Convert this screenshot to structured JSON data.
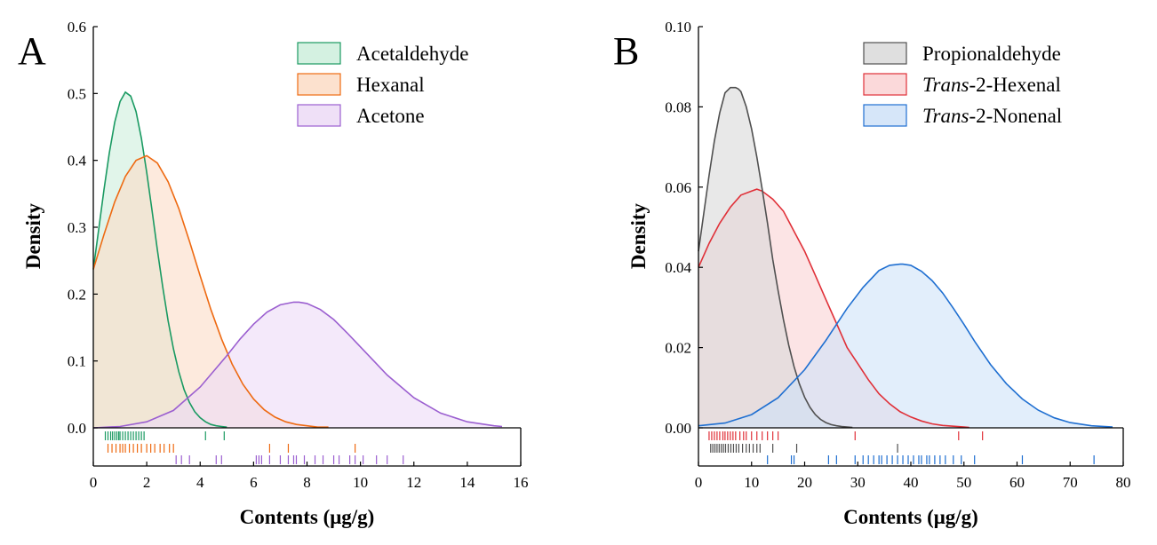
{
  "chart_data": [
    {
      "type": "area",
      "panel_label": "A",
      "xlabel": "Contents (μg/g)",
      "ylabel": "Density",
      "xlim": [
        0,
        16
      ],
      "ylim": [
        0,
        0.6
      ],
      "x_ticks": [
        "0",
        "2",
        "4",
        "6",
        "8",
        "10",
        "12",
        "14",
        "16"
      ],
      "y_ticks": [
        "0.0",
        "0.1",
        "0.2",
        "0.3",
        "0.4",
        "0.5",
        "0.6"
      ],
      "legend_position": "top-right",
      "series": [
        {
          "name": "Acetaldehyde",
          "line_color": "#1a9a62",
          "fill_color": "#cdeedc",
          "x": [
            0,
            0.2,
            0.4,
            0.6,
            0.8,
            1.0,
            1.2,
            1.4,
            1.6,
            1.8,
            2.0,
            2.2,
            2.4,
            2.6,
            2.8,
            3.0,
            3.2,
            3.4,
            3.6,
            3.8,
            4.0,
            4.2,
            4.4,
            4.6,
            4.8,
            5.0
          ],
          "y": [
            0.237,
            0.296,
            0.356,
            0.411,
            0.457,
            0.488,
            0.502,
            0.496,
            0.473,
            0.433,
            0.382,
            0.325,
            0.266,
            0.21,
            0.16,
            0.118,
            0.084,
            0.057,
            0.038,
            0.024,
            0.015,
            0.009,
            0.005,
            0.003,
            0.002,
            0.001
          ],
          "rug": [
            0.45,
            0.55,
            0.65,
            0.72,
            0.8,
            0.88,
            0.95,
            1.0,
            1.1,
            1.2,
            1.3,
            1.4,
            1.5,
            1.6,
            1.7,
            1.8,
            1.9,
            4.2,
            4.9
          ]
        },
        {
          "name": "Hexanal",
          "line_color": "#ee6a12",
          "fill_color": "#fcdcc6",
          "x": [
            0,
            0.4,
            0.8,
            1.2,
            1.6,
            2.0,
            2.4,
            2.8,
            3.2,
            3.6,
            4.0,
            4.4,
            4.8,
            5.2,
            5.6,
            6.0,
            6.4,
            6.8,
            7.2,
            7.6,
            8.0,
            8.4,
            8.8
          ],
          "y": [
            0.237,
            0.289,
            0.338,
            0.376,
            0.4,
            0.407,
            0.396,
            0.368,
            0.328,
            0.279,
            0.227,
            0.177,
            0.133,
            0.095,
            0.065,
            0.043,
            0.027,
            0.016,
            0.009,
            0.005,
            0.003,
            0.001,
            0.001
          ],
          "rug": [
            0.55,
            0.7,
            0.85,
            1.0,
            1.1,
            1.2,
            1.35,
            1.5,
            1.65,
            1.8,
            2.0,
            2.15,
            2.3,
            2.5,
            2.65,
            2.85,
            3.0,
            6.6,
            7.3,
            9.8
          ]
        },
        {
          "name": "Acetone",
          "line_color": "#9b5fd0",
          "fill_color": "#ecdaf6",
          "x": [
            0,
            1,
            2,
            3,
            4,
            5,
            5.5,
            6,
            6.5,
            7,
            7.5,
            7.7,
            8,
            8.5,
            9,
            9.5,
            10,
            10.5,
            11,
            12,
            13,
            14,
            15,
            15.3
          ],
          "y": [
            0.0,
            0.002,
            0.009,
            0.026,
            0.061,
            0.108,
            0.133,
            0.155,
            0.173,
            0.184,
            0.188,
            0.188,
            0.186,
            0.177,
            0.162,
            0.142,
            0.121,
            0.1,
            0.079,
            0.045,
            0.022,
            0.009,
            0.003,
            0.002
          ],
          "rug": [
            3.1,
            3.3,
            3.6,
            4.6,
            4.8,
            6.1,
            6.2,
            6.3,
            6.6,
            7.0,
            7.3,
            7.5,
            7.6,
            7.9,
            8.3,
            8.6,
            9.0,
            9.2,
            9.6,
            9.8,
            10.1,
            10.6,
            11.0,
            11.6
          ]
        }
      ]
    },
    {
      "type": "area",
      "panel_label": "B",
      "xlabel": "Contents (μg/g)",
      "ylabel": "Density",
      "xlim": [
        0,
        80
      ],
      "ylim": [
        0,
        0.1
      ],
      "x_ticks": [
        "0",
        "10",
        "20",
        "30",
        "40",
        "50",
        "60",
        "70",
        "80"
      ],
      "y_ticks": [
        "0.00",
        "0.02",
        "0.04",
        "0.06",
        "0.08",
        "0.10"
      ],
      "legend_position": "top-right",
      "series": [
        {
          "name_italic": "Trans",
          "name_rest": "-2-Hexenal",
          "name": "Trans-2-Hexenal",
          "line_color": "#e03038",
          "fill_color": "#fad2d4",
          "x": [
            0,
            2,
            4,
            6,
            8,
            10,
            11,
            12,
            14,
            16,
            18,
            20,
            22,
            24,
            26,
            28,
            30,
            32,
            34,
            36,
            38,
            40,
            42,
            44,
            46,
            48,
            50,
            51
          ],
          "y": [
            0.04,
            0.046,
            0.051,
            0.055,
            0.058,
            0.059,
            0.0595,
            0.059,
            0.057,
            0.054,
            0.049,
            0.044,
            0.038,
            0.032,
            0.026,
            0.02,
            0.016,
            0.012,
            0.0085,
            0.006,
            0.004,
            0.0027,
            0.0017,
            0.001,
            0.0006,
            0.0004,
            0.0002,
            0.0001
          ],
          "rug": [
            2,
            2.5,
            3,
            3.5,
            4,
            4.6,
            5,
            5.5,
            6,
            6.5,
            7,
            7.8,
            8.5,
            9,
            10,
            11,
            12,
            13,
            14,
            15,
            29.5,
            49,
            53.5
          ]
        },
        {
          "name": "Propionaldehyde",
          "line_color": "#505050",
          "fill_color": "#d9d9d9",
          "x": [
            0,
            1,
            2,
            3,
            4,
            5,
            6,
            7,
            7.5,
            8,
            9,
            10,
            11,
            12,
            13,
            14,
            15,
            16,
            17,
            18,
            19,
            20,
            21,
            22,
            23,
            24,
            25,
            26,
            27,
            28,
            29
          ],
          "y": [
            0.044,
            0.0535,
            0.063,
            0.0715,
            0.0785,
            0.0835,
            0.0848,
            0.0848,
            0.0845,
            0.0838,
            0.08,
            0.0745,
            0.0675,
            0.0595,
            0.051,
            0.042,
            0.0342,
            0.027,
            0.0206,
            0.0153,
            0.011,
            0.0076,
            0.0051,
            0.0033,
            0.0021,
            0.0013,
            0.0008,
            0.0005,
            0.0003,
            0.0002,
            0.0001
          ],
          "rug": [
            2.3,
            2.7,
            3.1,
            3.5,
            3.9,
            4.3,
            4.7,
            5.1,
            5.6,
            6.1,
            6.6,
            7.1,
            7.6,
            8.3,
            9.0,
            9.6,
            10.3,
            11.0,
            11.6,
            14.0,
            18.5,
            37.5
          ]
        },
        {
          "name_italic": "Trans",
          "name_rest": "-2-Nonenal",
          "name": "Trans-2-Nonenal",
          "line_color": "#1f6fd1",
          "fill_color": "#cfe2f8",
          "x": [
            0,
            5,
            10,
            15,
            20,
            24,
            28,
            31,
            34,
            36,
            38,
            38.5,
            40,
            42,
            44,
            46,
            48,
            50,
            52,
            55,
            58,
            61,
            64,
            67,
            70,
            74,
            78
          ],
          "y": [
            0.0005,
            0.0012,
            0.0033,
            0.0075,
            0.0145,
            0.0218,
            0.0298,
            0.035,
            0.0392,
            0.0405,
            0.0408,
            0.0408,
            0.0405,
            0.039,
            0.0367,
            0.0336,
            0.0298,
            0.0258,
            0.0216,
            0.0158,
            0.011,
            0.0072,
            0.0044,
            0.0025,
            0.0013,
            0.0005,
            0.0002
          ],
          "rug": [
            13,
            17.5,
            18,
            24.5,
            26,
            29.5,
            31,
            32,
            33,
            34,
            34.5,
            35.5,
            36.5,
            37.5,
            38.5,
            39.5,
            40.5,
            41.5,
            42,
            43,
            43.5,
            44.5,
            45.5,
            46.5,
            48,
            49.5,
            52,
            61,
            74.5
          ]
        }
      ]
    }
  ]
}
